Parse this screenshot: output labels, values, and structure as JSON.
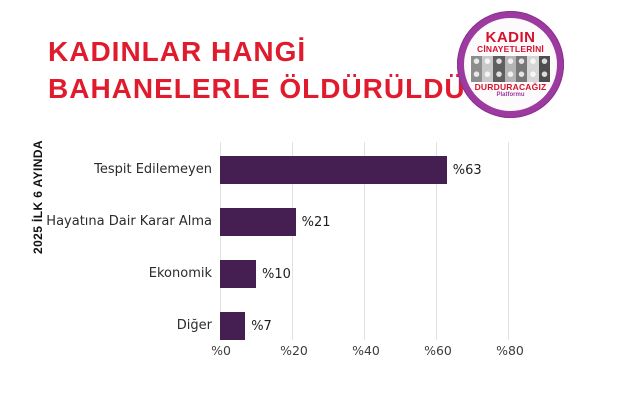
{
  "title": {
    "line1": "KADINLAR HANGİ",
    "line2": "BAHANELERLE ÖLDÜRÜLDÜ?"
  },
  "period_label": "2025 İLK 6 AYINDA",
  "logo": {
    "line1": "KADIN",
    "line2": "CİNAYETLERİNİ",
    "line3": "DURDURACAĞIZ",
    "line4": "Platformu"
  },
  "chart_data": {
    "type": "bar",
    "orientation": "horizontal",
    "title": "KADINLAR HANGİ BAHANELERLE ÖLDÜRÜLDÜ?",
    "subtitle": "2025 İLK 6 AYINDA",
    "categories": [
      "Tespit Edilemeyen",
      "Hayatına Dair Karar Alma",
      "Ekonomik",
      "Diğer"
    ],
    "values": [
      63,
      21,
      10,
      7
    ],
    "value_labels": [
      "%63",
      "%21",
      "%10",
      "%7"
    ],
    "x_ticks": {
      "labels": [
        "%0",
        "%20",
        "%40",
        "%60",
        "%80"
      ],
      "values": [
        0,
        20,
        40,
        60,
        80
      ]
    },
    "xlim": [
      0,
      100
    ],
    "grid": true,
    "legend": false,
    "bar_color": "#451f51"
  },
  "colors": {
    "title_red": "#e01b2d",
    "logo_red": "#d5122d",
    "logo_purple": "#9c3aa0",
    "bar_purple": "#451f51",
    "gridline": "#e3e1e4",
    "text_dark": "#2b2b2b",
    "background": "#ffffff"
  }
}
